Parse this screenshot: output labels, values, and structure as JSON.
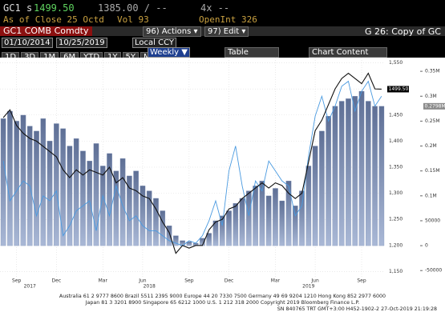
{
  "header": {
    "ticker": "GC1",
    "side": "s",
    "price": "1499.50",
    "bid_ask": "1385.00 / --",
    "size": "4x --",
    "as_of": "As of Close 25 Octd",
    "volume": "Vol 93",
    "open_interest": "OpenInt 326"
  },
  "toolbar": {
    "security": "GC1 COMB Comdty",
    "actions": "96) Actions ▾",
    "edit": "97) Edit ▾",
    "chart_name": "G 26: Copy of GC",
    "start_date": "01/10/2014",
    "end_date": "10/25/2019",
    "currency": "Local CCY",
    "periods": [
      "1D",
      "3D",
      "1M",
      "6M",
      "YTD",
      "1Y",
      "5Y",
      "Max"
    ],
    "frequency": "Weekly ▼",
    "table": "Table",
    "chart_content": "Chart Content"
  },
  "chart_data": {
    "type": "combo",
    "categories": [
      null,
      null,
      "Sep",
      null,
      null,
      null,
      null,
      null,
      "Dec",
      null,
      null,
      null,
      null,
      null,
      null,
      "Mar",
      null,
      null,
      null,
      null,
      null,
      "Jun",
      null,
      null,
      null,
      null,
      null,
      null,
      "Sep",
      null,
      null,
      null,
      null,
      null,
      "Dec",
      null,
      null,
      null,
      null,
      null,
      null,
      "Mar",
      null,
      null,
      null,
      null,
      null,
      "Jun",
      null,
      null,
      null,
      null,
      null,
      null,
      "Sep",
      null,
      null,
      null
    ],
    "years": [
      null,
      null,
      null,
      null,
      "2017",
      null,
      null,
      null,
      null,
      null,
      null,
      null,
      null,
      null,
      null,
      null,
      null,
      null,
      null,
      null,
      null,
      null,
      "2018",
      null,
      null,
      null,
      null,
      null,
      null,
      null,
      null,
      null,
      null,
      null,
      null,
      null,
      null,
      null,
      null,
      null,
      null,
      null,
      null,
      null,
      null,
      null,
      "2019",
      null,
      null,
      null,
      null,
      null,
      null,
      null,
      null,
      null,
      null,
      null
    ],
    "ylim": [
      1140,
      1560
    ],
    "yticks": [
      {
        "value": 1150,
        "label": "1,150"
      },
      {
        "value": 1200,
        "label": "1,200"
      },
      {
        "value": 1250,
        "label": "1,250"
      },
      {
        "value": 1300,
        "label": "1,300"
      },
      {
        "value": 1350,
        "label": "1,350"
      },
      {
        "value": 1400,
        "label": "1,400"
      },
      {
        "value": 1450,
        "label": "1,450"
      },
      {
        "value": 1500,
        "label": "1,500"
      },
      {
        "value": 1550,
        "label": "1,550"
      }
    ],
    "y2lim": [
      -62500,
      377500
    ],
    "y2ticks": [
      -50000,
      0,
      50000,
      {
        "value": 100000,
        "label": "0.1M"
      },
      {
        "value": 150000,
        "label": "0.15M"
      },
      {
        "value": 200000,
        "label": "0.2M"
      },
      {
        "value": 250000,
        "label": "0.25M"
      },
      {
        "value": 300000,
        "label": "0.3M"
      },
      {
        "value": 350000,
        "label": "0.35M"
      }
    ],
    "grid": true,
    "series": [
      {
        "type": "bar",
        "axis": "y2",
        "color": "#7f92b8",
        "values": [
          255000,
          270000,
          250000,
          262000,
          240000,
          230000,
          255000,
          210000,
          245000,
          235000,
          200000,
          215000,
          190000,
          170000,
          205000,
          160000,
          185000,
          150000,
          175000,
          140000,
          150000,
          120000,
          110000,
          95000,
          70000,
          40000,
          20000,
          10000,
          8000,
          5000,
          15000,
          25000,
          50000,
          60000,
          70000,
          85000,
          95000,
          110000,
          120000,
          130000,
          100000,
          115000,
          90000,
          130000,
          80000,
          110000,
          160000,
          200000,
          230000,
          260000,
          280000,
          290000,
          295000,
          300000,
          310000,
          290000,
          280000,
          279800
        ],
        "value_labels": [
          null,
          null,
          null,
          null,
          null,
          null,
          null,
          null,
          null,
          null,
          null,
          null,
          null,
          null,
          null,
          null,
          null,
          null,
          null,
          null,
          null,
          null,
          null,
          null,
          null,
          null,
          null,
          null,
          null,
          null,
          null,
          null,
          null,
          null,
          null,
          null,
          null,
          null,
          null,
          null,
          null,
          null,
          null,
          null,
          null,
          null,
          null,
          null,
          null,
          null,
          null,
          null,
          null,
          null,
          null,
          null,
          null,
          "0.2798M"
        ]
      },
      {
        "type": "line",
        "axis": "y2",
        "color": "#4a9ae0",
        "values": [
          170000,
          90000,
          110000,
          130000,
          120000,
          60000,
          100000,
          90000,
          110000,
          20000,
          40000,
          70000,
          80000,
          90000,
          30000,
          100000,
          60000,
          120000,
          80000,
          50000,
          60000,
          40000,
          30000,
          30000,
          20000,
          10000,
          5000,
          0,
          10000,
          5000,
          20000,
          50000,
          90000,
          40000,
          150000,
          200000,
          120000,
          60000,
          130000,
          110000,
          170000,
          150000,
          130000,
          120000,
          60000,
          80000,
          180000,
          260000,
          300000,
          250000,
          280000,
          320000,
          330000,
          270000,
          310000,
          330000,
          280000,
          300000
        ]
      },
      {
        "type": "line",
        "axis": "y",
        "color": "#111111",
        "values": [
          1445,
          1460,
          1430,
          1415,
          1405,
          1400,
          1390,
          1380,
          1370,
          1345,
          1330,
          1345,
          1335,
          1345,
          1340,
          1335,
          1350,
          1320,
          1330,
          1310,
          1305,
          1295,
          1290,
          1270,
          1245,
          1225,
          1185,
          1200,
          1195,
          1200,
          1200,
          1230,
          1245,
          1250,
          1270,
          1275,
          1290,
          1300,
          1310,
          1320,
          1310,
          1320,
          1315,
          1300,
          1290,
          1300,
          1360,
          1420,
          1440,
          1470,
          1500,
          1520,
          1530,
          1520,
          1510,
          1530,
          1500,
          1499.5
        ],
        "value_labels": [
          null,
          null,
          null,
          null,
          null,
          null,
          null,
          null,
          null,
          null,
          null,
          null,
          null,
          null,
          null,
          null,
          null,
          null,
          null,
          null,
          null,
          null,
          null,
          null,
          null,
          null,
          null,
          null,
          null,
          null,
          null,
          null,
          null,
          null,
          null,
          null,
          null,
          null,
          null,
          null,
          null,
          null,
          null,
          null,
          null,
          null,
          null,
          null,
          null,
          null,
          null,
          null,
          null,
          null,
          null,
          null,
          null,
          "1499.50"
        ]
      }
    ]
  },
  "footer": [
    "Australia 61 2 9777 8600 Brazil 5511 2395 9000 Europe 44 20 7330 7500 Germany 49 69 9204 1210 Hong Kong 852 2977 6000",
    "Japan 81 3 3201 8900     Singapore 65 6212 1000     U.S. 1 212 318 2000     Copyright 2019 Bloomberg Finance L.P.",
    "SN 840765 TRT  GMT+3:00 H452-1902-2 27-Oct-2019 21:19:28"
  ]
}
